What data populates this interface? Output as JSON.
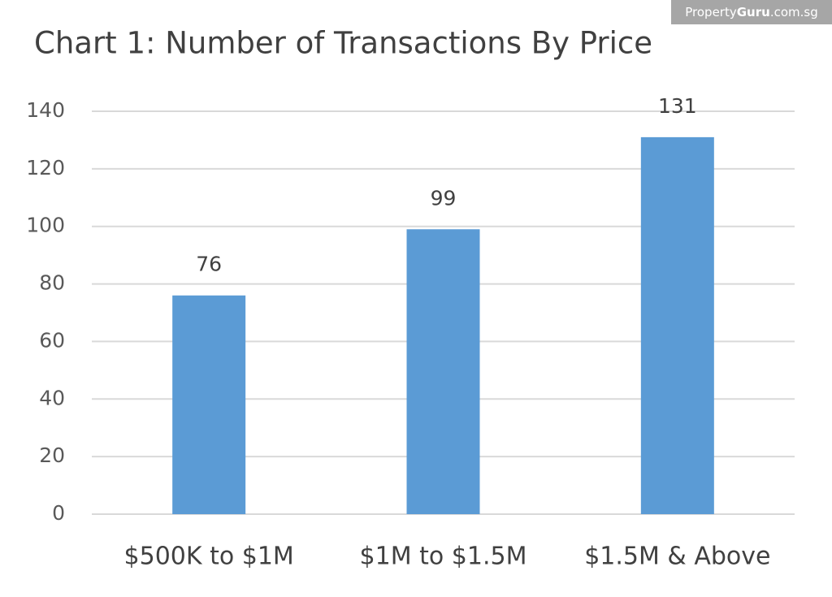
{
  "chart_data": {
    "type": "bar",
    "title": "Chart 1: Number of Transactions By Price",
    "watermark": [
      "Property",
      "Guru",
      ".com.sg"
    ],
    "categories": [
      "$500K to $1M",
      "$1M to $1.5M",
      "$1.5M & Above"
    ],
    "values": [
      76,
      99,
      131
    ],
    "color": "#5b9bd5",
    "ylim": [
      0,
      140
    ],
    "yticks": [
      0,
      20,
      40,
      60,
      80,
      100,
      120,
      140
    ],
    "grid": true
  }
}
